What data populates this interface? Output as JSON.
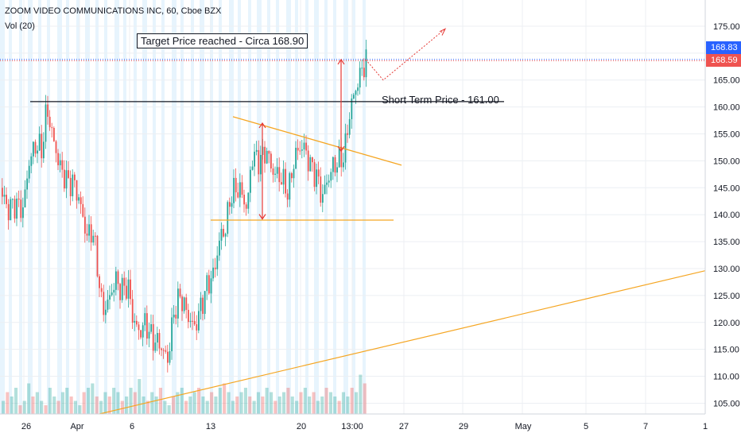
{
  "header": {
    "ticker_title": "ZOOM VIDEO COMMUNICATIONS INC, 60, Cboe BZX",
    "volume_label": "Vol (20)"
  },
  "annotations": {
    "target_price": "Target Price reached  - Circa 168.90",
    "short_term_price": "Short Term Price - 161.00"
  },
  "price_badges": {
    "last": "168.83",
    "other": "168.59"
  },
  "colors": {
    "up": "#26a69a",
    "down": "#ef5350",
    "trend": "#f5a623",
    "arrow": "#e53935",
    "session_band": "#e3f2fd",
    "blue_line": "#2962ff"
  },
  "chart_data": {
    "type": "candlestick",
    "title": "ZOOM VIDEO COMMUNICATIONS INC, 60, Cboe BZX",
    "y_axis": {
      "ticks": [
        105,
        110,
        115,
        120,
        125,
        130,
        135,
        140,
        145,
        150,
        155,
        160,
        165,
        170,
        175
      ],
      "tick_labels": [
        "105.00",
        "110.00",
        "115.00",
        "120.00",
        "125.00",
        "130.00",
        "135.00",
        "140.00",
        "145.00",
        "150.00",
        "155.00",
        "160.00",
        "165.00",
        "170.00",
        "175.00"
      ],
      "ylim": [
        103,
        177.5
      ]
    },
    "x_axis": {
      "tick_labels": [
        "26",
        "Apr",
        "6",
        "13",
        "20",
        "13:00",
        "27",
        "29",
        "May",
        "5",
        "7",
        "1"
      ]
    },
    "price_path": [
      [
        0,
        145
      ],
      [
        8,
        141
      ],
      [
        18,
        142
      ],
      [
        28,
        141
      ],
      [
        36,
        150
      ],
      [
        44,
        153
      ],
      [
        52,
        152
      ],
      [
        58,
        160
      ],
      [
        66,
        154
      ],
      [
        74,
        149
      ],
      [
        84,
        146
      ],
      [
        92,
        146
      ],
      [
        100,
        142
      ],
      [
        108,
        136
      ],
      [
        116,
        137
      ],
      [
        122,
        130
      ],
      [
        128,
        122
      ],
      [
        136,
        124
      ],
      [
        144,
        128
      ],
      [
        152,
        126
      ],
      [
        160,
        127
      ],
      [
        166,
        121
      ],
      [
        174,
        118
      ],
      [
        182,
        120
      ],
      [
        190,
        117
      ],
      [
        200,
        116
      ],
      [
        210,
        113
      ],
      [
        218,
        122
      ],
      [
        226,
        125
      ],
      [
        236,
        121
      ],
      [
        244,
        119
      ],
      [
        252,
        123
      ],
      [
        260,
        127
      ],
      [
        268,
        129
      ],
      [
        276,
        136
      ],
      [
        282,
        137
      ],
      [
        290,
        144
      ],
      [
        300,
        145
      ],
      [
        310,
        141
      ],
      [
        316,
        151
      ],
      [
        326,
        150
      ],
      [
        334,
        152
      ],
      [
        342,
        148
      ],
      [
        352,
        147
      ],
      [
        362,
        144
      ],
      [
        370,
        151
      ],
      [
        380,
        153
      ],
      [
        390,
        149
      ],
      [
        398,
        147
      ],
      [
        404,
        143
      ],
      [
        410,
        146
      ],
      [
        418,
        149
      ],
      [
        426,
        150
      ],
      [
        432,
        151
      ],
      [
        440,
        160
      ],
      [
        446,
        163
      ],
      [
        452,
        166
      ],
      [
        460,
        169
      ]
    ],
    "volume_profile": [
      3,
      5,
      4,
      6,
      2,
      3,
      7,
      4,
      5,
      3,
      2,
      6,
      4,
      3,
      5,
      6,
      4,
      3,
      2,
      5,
      6,
      7,
      4,
      3,
      5,
      4,
      6,
      5,
      3,
      4,
      6,
      5,
      8,
      4,
      3,
      5,
      4,
      6,
      3,
      2,
      4,
      5,
      6,
      3,
      4,
      5,
      6,
      4,
      3,
      5,
      4,
      6,
      7,
      5,
      3,
      4,
      5,
      6,
      4,
      3,
      5,
      4,
      6,
      5,
      3,
      4,
      5,
      6,
      4,
      3,
      5,
      6,
      4,
      5,
      3,
      4,
      6,
      5,
      4,
      3,
      5,
      4,
      6,
      5,
      9,
      7
    ],
    "levels": {
      "resistance": 161.0,
      "target": 168.9,
      "wedge_bottom": 139.0
    }
  }
}
